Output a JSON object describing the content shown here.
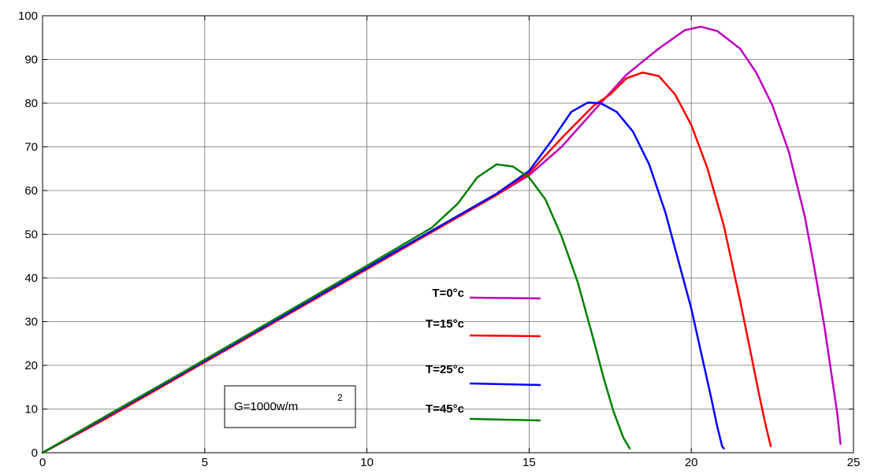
{
  "chart_data": {
    "type": "line",
    "title": "",
    "xlabel": "",
    "ylabel": "",
    "xlim": [
      0,
      25
    ],
    "ylim": [
      0,
      100
    ],
    "grid": true,
    "x_ticks": [
      "0",
      "5",
      "10",
      "15",
      "20",
      "25"
    ],
    "y_ticks": [
      "0",
      "10",
      "20",
      "30",
      "40",
      "50",
      "60",
      "70",
      "80",
      "90",
      "100"
    ],
    "legend_position": "center-right",
    "annotation": {
      "text": "G=1000w/m",
      "superscript": "2"
    },
    "series": [
      {
        "name": "T=0°c",
        "color": "#bf00bf",
        "x": [
          0,
          2,
          4,
          6,
          8,
          10,
          12,
          14,
          15,
          16,
          17,
          18,
          19,
          19.8,
          20.3,
          20.8,
          21.5,
          22,
          22.5,
          23,
          23.5,
          23.8,
          24.1,
          24.3,
          24.5,
          24.6
        ],
        "y": [
          0,
          8,
          16.5,
          25,
          33.5,
          42,
          50.5,
          59,
          63.5,
          70,
          78.3,
          86.5,
          92.5,
          96.7,
          97.5,
          96.5,
          92.5,
          87,
          79.5,
          69,
          54,
          42,
          29,
          19,
          9,
          2
        ]
      },
      {
        "name": "T=15°c",
        "color": "#ff0000",
        "x": [
          0,
          2,
          4,
          6,
          8,
          10,
          12,
          14,
          15,
          16,
          17,
          17.5,
          18,
          18.5,
          19,
          19.5,
          20,
          20.5,
          21,
          21.5,
          21.8,
          22.1,
          22.3,
          22.45
        ],
        "y": [
          0,
          8,
          16.5,
          25,
          33.5,
          42,
          50.5,
          59,
          64,
          72,
          79.5,
          82,
          85.7,
          87,
          86.2,
          82,
          75,
          65,
          52,
          35,
          24,
          13,
          6,
          1.5
        ]
      },
      {
        "name": "T=25°c",
        "color": "#0000ff",
        "x": [
          0,
          2,
          4,
          6,
          8,
          10,
          12,
          14,
          15,
          15.7,
          16.3,
          16.8,
          17.2,
          17.7,
          18.2,
          18.7,
          19.2,
          19.6,
          20,
          20.3,
          20.6,
          20.8,
          20.95,
          21
        ],
        "y": [
          0,
          8.4,
          16.8,
          25.3,
          33.8,
          42.3,
          50.8,
          59.3,
          64.5,
          71.5,
          78,
          80.1,
          80,
          78,
          73.5,
          66,
          55,
          44,
          33,
          23,
          13,
          6,
          1.5,
          1
        ]
      },
      {
        "name": "T=45°c",
        "color": "#008000",
        "x": [
          0,
          2,
          4,
          6,
          8,
          10,
          12,
          12.8,
          13.4,
          14,
          14.5,
          15,
          15.5,
          16,
          16.5,
          17,
          17.3,
          17.6,
          17.9,
          18.1
        ],
        "y": [
          0,
          8.6,
          17,
          25.6,
          34.2,
          42.8,
          51.5,
          57,
          63,
          66,
          65.5,
          63,
          58,
          49.5,
          39,
          25.5,
          17,
          9.5,
          3.5,
          1
        ]
      }
    ]
  }
}
